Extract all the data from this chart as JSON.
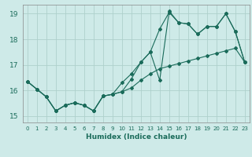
{
  "xlabel": "Humidex (Indice chaleur)",
  "bg_color": "#ceeae8",
  "grid_color": "#aed0cc",
  "line_color": "#1a6b5a",
  "xlim": [
    -0.5,
    23.5
  ],
  "ylim": [
    14.75,
    19.35
  ],
  "xticks": [
    0,
    1,
    2,
    3,
    4,
    5,
    6,
    7,
    8,
    9,
    10,
    11,
    12,
    13,
    14,
    15,
    16,
    17,
    18,
    19,
    20,
    21,
    22,
    23
  ],
  "yticks": [
    15,
    16,
    17,
    18,
    19
  ],
  "line1_x": [
    0,
    1,
    2,
    3,
    4,
    5,
    6,
    7,
    8,
    9,
    10,
    11,
    12,
    13,
    14,
    15,
    16,
    17,
    18,
    19,
    20,
    21,
    22,
    23
  ],
  "line1_y": [
    16.35,
    16.05,
    15.75,
    15.2,
    15.42,
    15.52,
    15.42,
    15.2,
    15.78,
    15.85,
    15.95,
    16.1,
    16.4,
    16.65,
    16.85,
    16.95,
    17.05,
    17.15,
    17.25,
    17.35,
    17.45,
    17.55,
    17.65,
    17.1
  ],
  "line2_x": [
    0,
    1,
    2,
    3,
    4,
    5,
    6,
    7,
    8,
    9,
    10,
    11,
    12,
    13,
    14,
    15,
    16,
    17,
    18,
    19,
    20,
    21,
    22,
    23
  ],
  "line2_y": [
    16.35,
    16.05,
    15.75,
    15.2,
    15.42,
    15.52,
    15.42,
    15.2,
    15.78,
    15.85,
    16.3,
    16.65,
    17.1,
    17.5,
    18.4,
    19.05,
    18.65,
    18.6,
    18.2,
    18.5,
    18.5,
    19.0,
    18.3,
    17.1
  ],
  "line3_x": [
    0,
    1,
    2,
    3,
    4,
    5,
    6,
    7,
    8,
    9,
    10,
    11,
    12,
    13,
    14,
    15,
    16,
    17,
    18,
    19,
    20,
    21,
    22,
    23
  ],
  "line3_y": [
    16.35,
    16.05,
    15.75,
    15.2,
    15.42,
    15.52,
    15.42,
    15.2,
    15.78,
    15.85,
    15.95,
    16.45,
    17.1,
    17.5,
    16.4,
    19.1,
    18.65,
    18.6,
    18.2,
    18.5,
    18.5,
    19.0,
    18.3,
    17.1
  ]
}
